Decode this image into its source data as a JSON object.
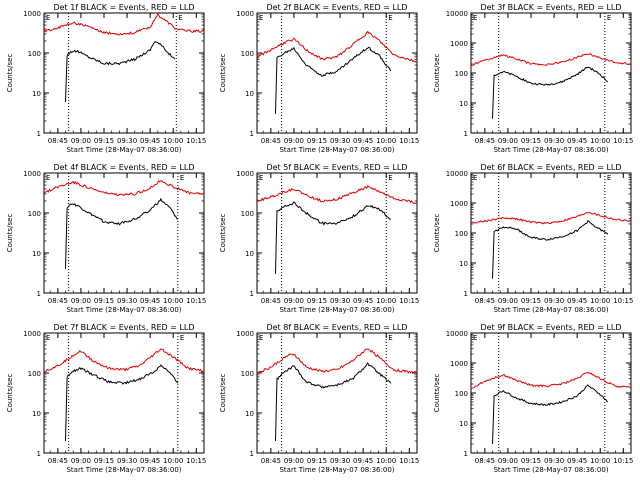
{
  "colors": {
    "background": "#ffffff",
    "axes": "#000000",
    "events": "#000000",
    "lld": "#e00000"
  },
  "start_time_label": "Start Time (28-May-07 08:36:00)",
  "ylabel": "Counts/sec",
  "x_ticks": [
    "08:45",
    "09:00",
    "09:15",
    "09:30",
    "09:45",
    "10:00",
    "10:15"
  ],
  "y_ticks": [
    "1",
    "10",
    "100",
    "1000",
    "10000"
  ],
  "chart_data": [
    {
      "type": "line",
      "title": "Det 1f BLACK = Events, RED = LLD",
      "xlabel": "Start Time (28-May-07 08:36:00)",
      "ylabel": "Counts/sec",
      "ylim": [
        1,
        1000
      ],
      "yscale": "log",
      "y_ticks": [
        1,
        10,
        100,
        1000
      ],
      "xlim": [
        "08:36",
        "10:20"
      ],
      "x_ticks": [
        "08:45",
        "09:00",
        "09:15",
        "09:30",
        "09:45",
        "10:00",
        "10:15"
      ],
      "dotted_lines_x": [
        "08:52",
        "10:02"
      ],
      "series": [
        {
          "name": "Events",
          "color": "black",
          "x": [
            "08:50",
            "08:51",
            "08:54",
            "08:58",
            "09:05",
            "09:15",
            "09:25",
            "09:35",
            "09:45",
            "09:48",
            "09:52",
            "09:58",
            "10:01"
          ],
          "values": [
            6,
            90,
            110,
            110,
            80,
            55,
            55,
            70,
            120,
            200,
            160,
            90,
            70
          ]
        },
        {
          "name": "LLD",
          "color": "red",
          "x": [
            "08:36",
            "08:45",
            "08:55",
            "09:05",
            "09:15",
            "09:25",
            "09:35",
            "09:45",
            "09:50",
            "09:55",
            "10:02",
            "10:10",
            "10:20"
          ],
          "values": [
            350,
            420,
            580,
            450,
            320,
            300,
            320,
            450,
            900,
            650,
            400,
            350,
            350
          ]
        }
      ]
    },
    {
      "type": "line",
      "title": "Det 2f BLACK = Events, RED = LLD",
      "xlabel": "Start Time (28-May-07 08:36:00)",
      "ylabel": "Counts/sec",
      "ylim": [
        1,
        1000
      ],
      "yscale": "log",
      "y_ticks": [
        1,
        10,
        100,
        1000
      ],
      "xlim": [
        "08:36",
        "10:20"
      ],
      "x_ticks": [
        "08:45",
        "09:00",
        "09:15",
        "09:30",
        "09:45",
        "10:00",
        "10:15"
      ],
      "dotted_lines_x": [
        "08:52",
        "10:00"
      ],
      "series": [
        {
          "name": "Events",
          "color": "black",
          "x": [
            "08:48",
            "08:49",
            "08:54",
            "09:00",
            "09:08",
            "09:18",
            "09:28",
            "09:38",
            "09:48",
            "09:55",
            "10:03"
          ],
          "values": [
            3,
            75,
            100,
            130,
            50,
            28,
            35,
            70,
            140,
            90,
            35
          ]
        },
        {
          "name": "LLD",
          "color": "red",
          "x": [
            "08:36",
            "08:45",
            "08:55",
            "09:00",
            "09:08",
            "09:18",
            "09:28",
            "09:38",
            "09:48",
            "09:55",
            "10:05",
            "10:20"
          ],
          "values": [
            80,
            120,
            190,
            220,
            120,
            70,
            80,
            160,
            330,
            210,
            90,
            60
          ]
        }
      ]
    },
    {
      "type": "line",
      "title": "Det 3f BLACK = Events, RED = LLD",
      "xlabel": "Start Time (28-May-07 08:36:00)",
      "ylabel": "Counts/sec",
      "ylim": [
        1,
        10000
      ],
      "yscale": "log",
      "y_ticks": [
        1,
        10,
        100,
        1000,
        10000
      ],
      "xlim": [
        "08:36",
        "10:20"
      ],
      "x_ticks": [
        "08:45",
        "09:00",
        "09:15",
        "09:30",
        "09:45",
        "10:00",
        "10:15"
      ],
      "dotted_lines_x": [
        "08:54",
        "10:03"
      ],
      "series": [
        {
          "name": "Events",
          "color": "black",
          "x": [
            "08:50",
            "08:51",
            "08:57",
            "09:05",
            "09:15",
            "09:25",
            "09:35",
            "09:45",
            "09:52",
            "10:00",
            "10:05"
          ],
          "values": [
            3,
            85,
            110,
            80,
            45,
            40,
            50,
            90,
            160,
            90,
            50
          ]
        },
        {
          "name": "LLD",
          "color": "red",
          "x": [
            "08:36",
            "08:45",
            "08:57",
            "09:05",
            "09:15",
            "09:25",
            "09:35",
            "09:45",
            "09:52",
            "10:00",
            "10:10",
            "10:20"
          ],
          "values": [
            180,
            270,
            400,
            300,
            200,
            190,
            230,
            330,
            450,
            320,
            220,
            200
          ]
        }
      ]
    },
    {
      "type": "line",
      "title": "Det 4f BLACK = Events, RED = LLD",
      "xlabel": "Start Time (28-May-07 08:36:00)",
      "ylabel": "Counts/sec",
      "ylim": [
        1,
        1000
      ],
      "yscale": "log",
      "y_ticks": [
        1,
        10,
        100,
        1000
      ],
      "xlim": [
        "08:36",
        "10:20"
      ],
      "x_ticks": [
        "08:45",
        "09:00",
        "09:15",
        "09:30",
        "09:45",
        "10:00",
        "10:15"
      ],
      "dotted_lines_x": [
        "08:52",
        "10:03"
      ],
      "series": [
        {
          "name": "Events",
          "color": "black",
          "x": [
            "08:50",
            "08:51",
            "08:54",
            "08:58",
            "09:05",
            "09:15",
            "09:25",
            "09:35",
            "09:45",
            "09:52",
            "09:58",
            "10:03"
          ],
          "values": [
            4,
            140,
            170,
            150,
            100,
            60,
            55,
            70,
            120,
            210,
            130,
            70
          ]
        },
        {
          "name": "LLD",
          "color": "red",
          "x": [
            "08:36",
            "08:45",
            "08:55",
            "09:05",
            "09:15",
            "09:25",
            "09:35",
            "09:45",
            "09:52",
            "10:00",
            "10:10",
            "10:20"
          ],
          "values": [
            320,
            450,
            600,
            430,
            320,
            280,
            300,
            420,
            650,
            450,
            320,
            300
          ]
        }
      ]
    },
    {
      "type": "line",
      "title": "Det 5f BLACK = Events, RED = LLD",
      "xlabel": "Start Time (28-May-07 08:36:00)",
      "ylabel": "Counts/sec",
      "ylim": [
        1,
        1000
      ],
      "yscale": "log",
      "y_ticks": [
        1,
        10,
        100,
        1000
      ],
      "xlim": [
        "08:36",
        "10:20"
      ],
      "x_ticks": [
        "08:45",
        "09:00",
        "09:15",
        "09:30",
        "09:45",
        "10:00",
        "10:15"
      ],
      "dotted_lines_x": [
        "08:52",
        "10:00"
      ],
      "series": [
        {
          "name": "Events",
          "color": "black",
          "x": [
            "08:48",
            "08:49",
            "08:53",
            "09:00",
            "09:08",
            "09:18",
            "09:28",
            "09:38",
            "09:48",
            "09:55",
            "10:03"
          ],
          "values": [
            3,
            110,
            140,
            180,
            100,
            55,
            55,
            80,
            150,
            130,
            70
          ]
        },
        {
          "name": "LLD",
          "color": "red",
          "x": [
            "08:36",
            "08:45",
            "08:55",
            "09:00",
            "09:08",
            "09:18",
            "09:28",
            "09:38",
            "09:48",
            "09:55",
            "10:05",
            "10:20"
          ],
          "values": [
            200,
            250,
            350,
            400,
            280,
            200,
            220,
            320,
            450,
            350,
            230,
            180
          ]
        }
      ]
    },
    {
      "type": "line",
      "title": "Det 6f BLACK = Events, RED = LLD",
      "xlabel": "Start Time (28-May-07 08:36:00)",
      "ylabel": "Counts/sec",
      "ylim": [
        1,
        10000
      ],
      "yscale": "log",
      "y_ticks": [
        1,
        10,
        100,
        1000,
        10000
      ],
      "xlim": [
        "08:36",
        "10:20"
      ],
      "x_ticks": [
        "08:45",
        "09:00",
        "09:15",
        "09:30",
        "09:45",
        "10:00",
        "10:15"
      ],
      "dotted_lines_x": [
        "08:54",
        "10:03"
      ],
      "series": [
        {
          "name": "Events",
          "color": "black",
          "x": [
            "08:50",
            "08:51",
            "08:57",
            "09:05",
            "09:15",
            "09:25",
            "09:35",
            "09:45",
            "09:52",
            "10:00",
            "10:05"
          ],
          "values": [
            3,
            110,
            160,
            140,
            70,
            60,
            75,
            120,
            240,
            130,
            90
          ]
        },
        {
          "name": "LLD",
          "color": "red",
          "x": [
            "08:36",
            "08:45",
            "08:57",
            "09:05",
            "09:15",
            "09:25",
            "09:35",
            "09:45",
            "09:52",
            "10:00",
            "10:10",
            "10:20"
          ],
          "values": [
            220,
            250,
            320,
            300,
            230,
            210,
            250,
            350,
            500,
            380,
            280,
            250
          ]
        }
      ]
    },
    {
      "type": "line",
      "title": "Det 7f BLACK = Events, RED = LLD",
      "xlabel": "Start Time (28-May-07 08:36:00)",
      "ylabel": "Counts/sec",
      "ylim": [
        1,
        1000
      ],
      "yscale": "log",
      "y_ticks": [
        1,
        10,
        100,
        1000
      ],
      "xlim": [
        "08:36",
        "10:20"
      ],
      "x_ticks": [
        "08:45",
        "09:00",
        "09:15",
        "09:30",
        "09:45",
        "10:00",
        "10:15"
      ],
      "dotted_lines_x": [
        "08:52",
        "10:03"
      ],
      "series": [
        {
          "name": "Events",
          "color": "black",
          "x": [
            "08:50",
            "08:51",
            "08:55",
            "09:00",
            "09:08",
            "09:18",
            "09:28",
            "09:38",
            "09:48",
            "09:52",
            "09:58",
            "10:03"
          ],
          "values": [
            2,
            80,
            110,
            130,
            90,
            60,
            55,
            70,
            110,
            160,
            100,
            55
          ]
        },
        {
          "name": "LLD",
          "color": "red",
          "x": [
            "08:36",
            "08:45",
            "08:55",
            "09:00",
            "09:08",
            "09:18",
            "09:28",
            "09:38",
            "09:48",
            "09:52",
            "10:00",
            "10:10",
            "10:20"
          ],
          "values": [
            110,
            150,
            280,
            350,
            200,
            130,
            120,
            150,
            300,
            400,
            250,
            130,
            110
          ]
        }
      ]
    },
    {
      "type": "line",
      "title": "Det 8f BLACK = Events, RED = LLD",
      "xlabel": "Start Time (28-May-07 08:36:00)",
      "ylabel": "Counts/sec",
      "ylim": [
        1,
        1000
      ],
      "yscale": "log",
      "y_ticks": [
        1,
        10,
        100,
        1000
      ],
      "xlim": [
        "08:36",
        "10:20"
      ],
      "x_ticks": [
        "08:45",
        "09:00",
        "09:15",
        "09:30",
        "09:45",
        "10:00",
        "10:15"
      ],
      "dotted_lines_x": [
        "08:52",
        "10:00"
      ],
      "series": [
        {
          "name": "Events",
          "color": "black",
          "x": [
            "08:48",
            "08:49",
            "08:53",
            "09:00",
            "09:08",
            "09:18",
            "09:28",
            "09:38",
            "09:48",
            "09:55",
            "10:03"
          ],
          "values": [
            2,
            70,
            100,
            150,
            60,
            45,
            50,
            70,
            170,
            100,
            55
          ]
        },
        {
          "name": "LLD",
          "color": "red",
          "x": [
            "08:36",
            "08:45",
            "08:55",
            "09:00",
            "09:08",
            "09:18",
            "09:28",
            "09:38",
            "09:48",
            "09:55",
            "10:05",
            "10:20"
          ],
          "values": [
            100,
            140,
            260,
            300,
            140,
            110,
            120,
            200,
            420,
            250,
            120,
            100
          ]
        }
      ]
    },
    {
      "type": "line",
      "title": "Det 9f BLACK = Events, RED = LLD",
      "xlabel": "Start Time (28-May-07 08:36:00)",
      "ylabel": "Counts/sec",
      "ylim": [
        1,
        10000
      ],
      "yscale": "log",
      "y_ticks": [
        1,
        10,
        100,
        1000,
        10000
      ],
      "xlim": [
        "08:36",
        "10:20"
      ],
      "x_ticks": [
        "08:45",
        "09:00",
        "09:15",
        "09:30",
        "09:45",
        "10:00",
        "10:15"
      ],
      "dotted_lines_x": [
        "08:54",
        "10:03"
      ],
      "series": [
        {
          "name": "Events",
          "color": "black",
          "x": [
            "08:50",
            "08:51",
            "08:57",
            "09:05",
            "09:15",
            "09:25",
            "09:35",
            "09:45",
            "09:52",
            "10:00",
            "10:05"
          ],
          "values": [
            2,
            80,
            120,
            70,
            45,
            40,
            50,
            80,
            180,
            90,
            50
          ]
        },
        {
          "name": "LLD",
          "color": "red",
          "x": [
            "08:36",
            "08:45",
            "08:57",
            "09:05",
            "09:15",
            "09:25",
            "09:35",
            "09:45",
            "09:52",
            "10:00",
            "10:10",
            "10:20"
          ],
          "values": [
            140,
            250,
            400,
            270,
            180,
            170,
            200,
            300,
            500,
            300,
            170,
            150
          ]
        }
      ]
    }
  ]
}
